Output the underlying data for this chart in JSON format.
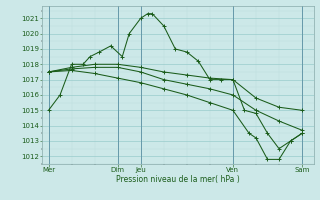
{
  "bg_color": "#cce8e8",
  "grid_major_color": "#99cccc",
  "grid_minor_color": "#bbdddd",
  "line_color": "#1a5c1a",
  "ylim": [
    1011.5,
    1021.8
  ],
  "yticks": [
    1012,
    1013,
    1014,
    1015,
    1016,
    1017,
    1018,
    1019,
    1020,
    1021
  ],
  "xlabel": "Pression niveau de la mer( hPa )",
  "xtick_labels": [
    "Mer",
    "Dim",
    "Jeu",
    "Ven",
    "Sam"
  ],
  "xtick_positions": [
    0,
    3,
    4,
    8,
    11
  ],
  "vline_positions": [
    0,
    3,
    4,
    8,
    11
  ],
  "xlim": [
    -0.3,
    11.5
  ],
  "series": [
    {
      "x": [
        0,
        0.5,
        1.0,
        1.5,
        1.8,
        2.2,
        2.7,
        3.2,
        3.5,
        4.0,
        4.3,
        4.5,
        5.0,
        5.5,
        6.0,
        6.5,
        7.0,
        7.5,
        8.0,
        8.5,
        9.0,
        9.5,
        10.0,
        10.5,
        11.0
      ],
      "y": [
        1015.0,
        1016.0,
        1018.0,
        1018.0,
        1018.5,
        1018.8,
        1019.2,
        1018.5,
        1020.0,
        1021.0,
        1021.3,
        1021.3,
        1020.5,
        1019.0,
        1018.8,
        1018.2,
        1017.0,
        1017.0,
        1017.0,
        1015.0,
        1014.8,
        1013.5,
        1012.5,
        1013.0,
        1013.5
      ]
    },
    {
      "x": [
        0,
        1.0,
        2.0,
        3.0,
        4.0,
        5.0,
        6.0,
        7.0,
        8.0,
        9.0,
        10.0,
        11.0
      ],
      "y": [
        1017.5,
        1017.8,
        1018.0,
        1018.0,
        1017.8,
        1017.5,
        1017.3,
        1017.1,
        1017.0,
        1015.8,
        1015.2,
        1015.0
      ]
    },
    {
      "x": [
        0,
        1.0,
        2.0,
        3.0,
        4.0,
        5.0,
        6.0,
        7.0,
        8.0,
        9.0,
        10.0,
        11.0
      ],
      "y": [
        1017.5,
        1017.7,
        1017.8,
        1017.8,
        1017.5,
        1017.0,
        1016.7,
        1016.4,
        1016.0,
        1015.0,
        1014.3,
        1013.7
      ]
    },
    {
      "x": [
        0,
        1.0,
        2.0,
        3.0,
        4.0,
        5.0,
        6.0,
        7.0,
        8.0,
        8.7,
        9.0,
        9.5,
        10.0,
        10.5,
        11.0
      ],
      "y": [
        1017.5,
        1017.6,
        1017.4,
        1017.1,
        1016.8,
        1016.4,
        1016.0,
        1015.5,
        1015.0,
        1013.5,
        1013.2,
        1011.8,
        1011.8,
        1013.0,
        1013.5
      ]
    }
  ]
}
